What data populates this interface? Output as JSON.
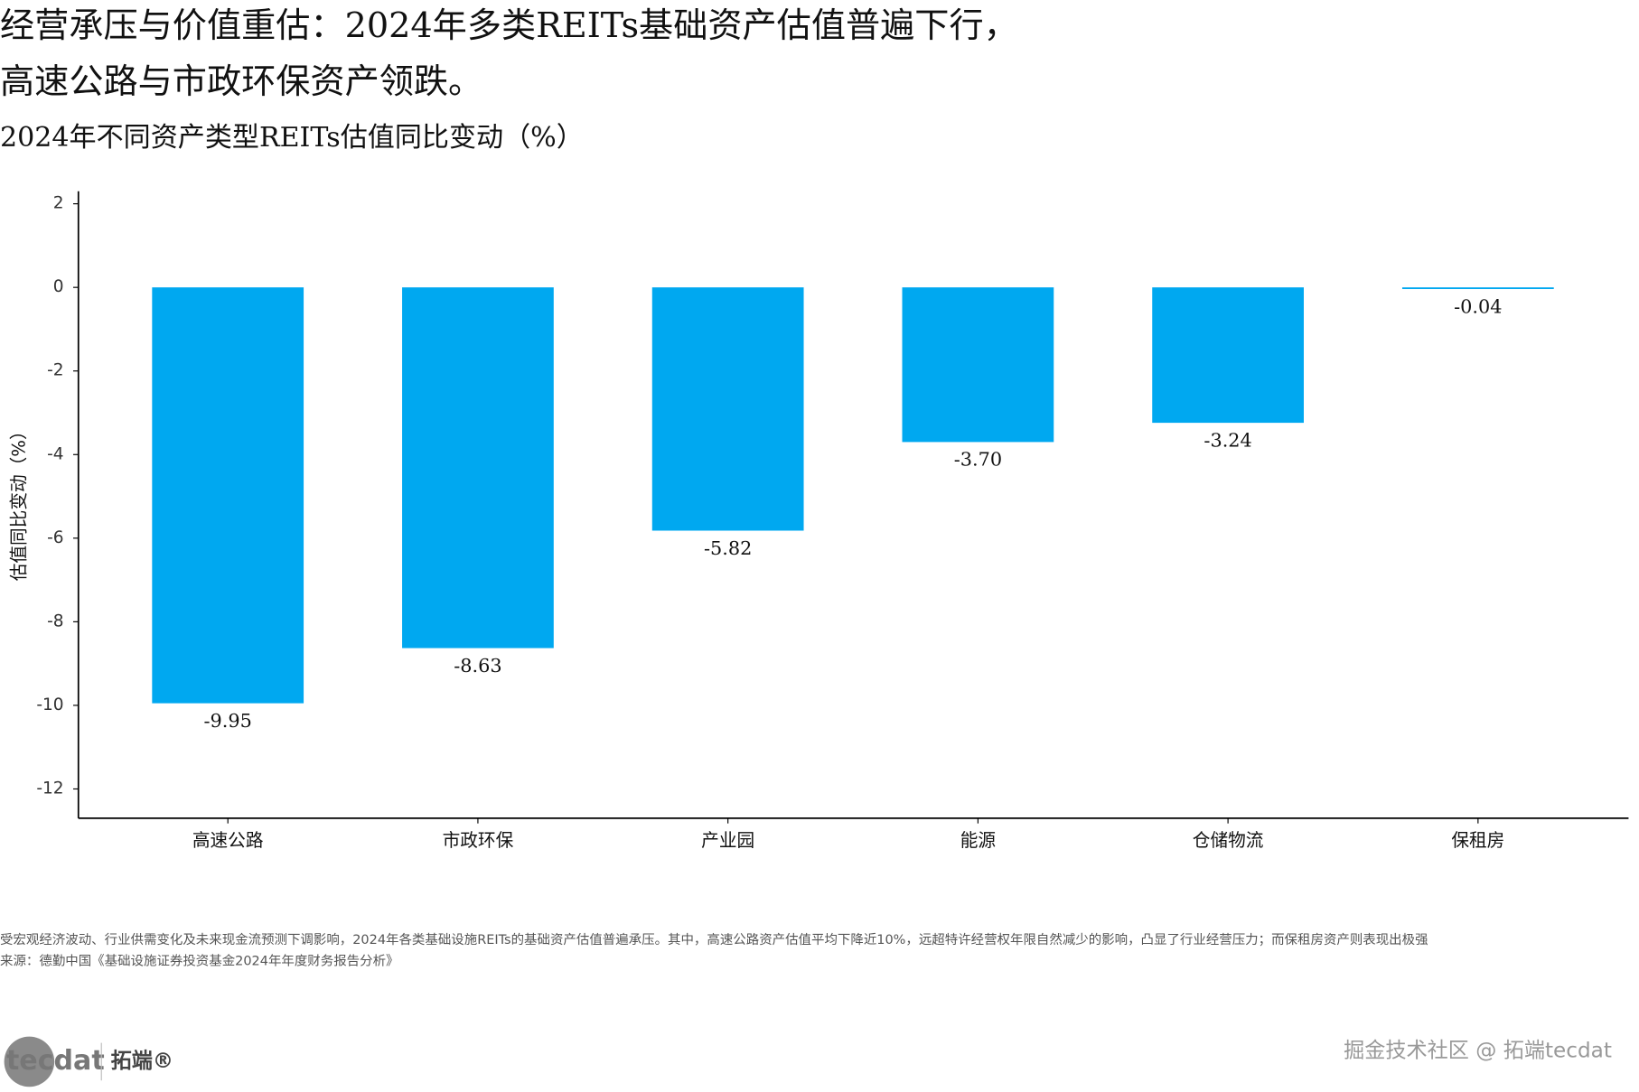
{
  "chart_data": {
    "type": "bar",
    "title_lines": [
      "经营承压与价值重估：2024年多类REITs基础资产估值普遍下行，",
      "高速公路与市政环保资产领跌。"
    ],
    "subtitle": "2024年不同资产类型REITs估值同比变动（%）",
    "y_label": "估值同比变动（%）",
    "categories": [
      "高速公路",
      "市政环保",
      "产业园",
      "能源",
      "仓储物流",
      "保租房"
    ],
    "values": [
      -9.95,
      -8.63,
      -5.82,
      -3.7,
      -3.24,
      -0.04
    ],
    "value_labels": [
      "-9.95",
      "-8.63",
      "-5.82",
      "-3.70",
      "-3.24",
      "-0.04"
    ],
    "color": "#00a8f0",
    "ylim": [
      -12.7,
      2.3
    ],
    "yticks": [
      -12,
      -10,
      -8,
      -6,
      -4,
      -2,
      0,
      2
    ],
    "note": "受宏观经济波动、行业供需变化及未来现金流预测下调影响，2024年各类基础设施REITs的基础资产估值普遍承压。其中，高速公路资产估值平均下降近10%，远超特许经营权年限自然减少的影响，凸显了行业经营压力；而保租房资产则表现出极强",
    "source": "来源：德勤中国《基础设施证券投资基金2024年年度财务报告分析》"
  },
  "footer": {
    "logo": "tecdat",
    "brand": "拓端®",
    "watermark": "掘金技术社区 @ 拓端tecdat"
  }
}
